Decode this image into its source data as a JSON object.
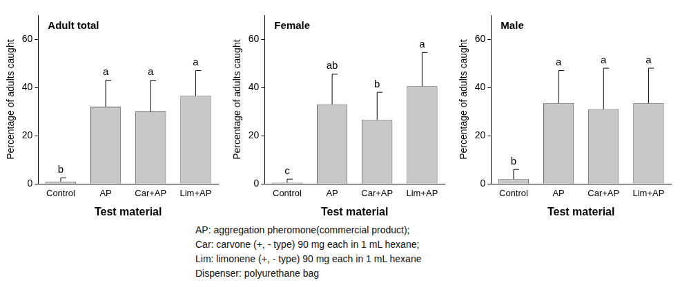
{
  "chart_data": [
    {
      "type": "bar",
      "title": "Adult total",
      "categories": [
        "Control",
        "AP",
        "Car+AP",
        "Lim+AP"
      ],
      "values": [
        1,
        32,
        30,
        36.5
      ],
      "errors": [
        1.5,
        11,
        13,
        10.5
      ],
      "annotations": [
        "b",
        "a",
        "a",
        "a"
      ],
      "x_label": "Test material",
      "y_label": "Percentage of adults caught",
      "color": "#c8c8c8",
      "ylim": [
        0,
        70
      ],
      "yticks": [
        0,
        20,
        40,
        60
      ],
      "grid": false
    },
    {
      "type": "bar",
      "title": "Female",
      "categories": [
        "Control",
        "AP",
        "Car+AP",
        "Lim+AP"
      ],
      "values": [
        0.5,
        33,
        26.5,
        40.5
      ],
      "errors": [
        1.5,
        12.5,
        11.5,
        14
      ],
      "annotations": [
        "c",
        "ab",
        "b",
        "a"
      ],
      "x_label": "Test material",
      "y_label": "Percentage of adults caught",
      "color": "#c8c8c8",
      "ylim": [
        0,
        70
      ],
      "yticks": [
        0,
        20,
        40,
        60
      ],
      "grid": false
    },
    {
      "type": "bar",
      "title": "Male",
      "categories": [
        "Control",
        "AP",
        "Car+AP",
        "Lim+AP"
      ],
      "values": [
        2,
        33.5,
        31,
        33.5
      ],
      "errors": [
        4,
        13.5,
        17,
        14.5
      ],
      "annotations": [
        "b",
        "a",
        "a",
        "a"
      ],
      "x_label": "Test material",
      "y_label": "Percentage of adults caught",
      "color": "#c8c8c8",
      "ylim": [
        0,
        70
      ],
      "yticks": [
        0,
        20,
        40,
        60
      ],
      "grid": false
    }
  ],
  "caption": [
    "AP: aggregation pheromone(commercial product);",
    "Car: carvone (+, - type) 90 mg each in 1 mL hexane;",
    "Lim: limonene (+, - type) 90 mg each in 1 mL hexane",
    "Dispenser: polyurethane bag"
  ]
}
